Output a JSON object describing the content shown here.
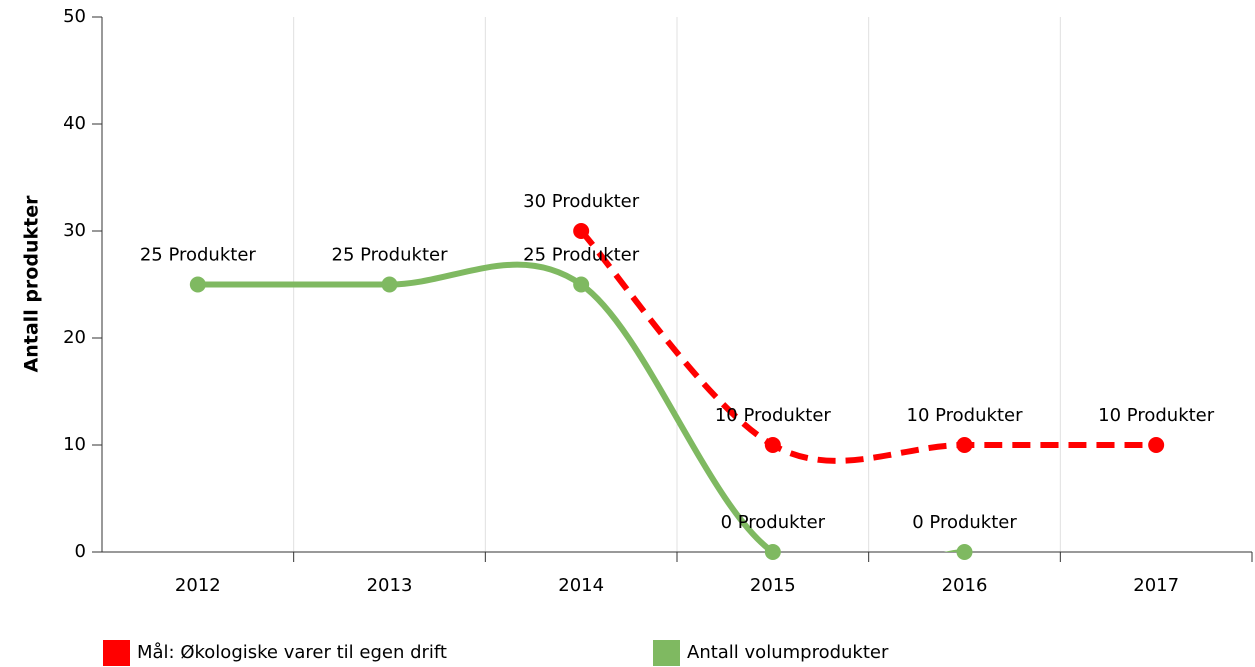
{
  "chart_data": {
    "type": "line",
    "y_label": "Antall produkter",
    "categories": [
      "2012",
      "2013",
      "2014",
      "2015",
      "2016",
      "2017"
    ],
    "series": [
      {
        "name": "Mål: Økologiske varer til egen drift",
        "color": "#ff0000",
        "dashed": true,
        "values": [
          null,
          null,
          30,
          10,
          10,
          10
        ],
        "value_labels": [
          null,
          null,
          "30 Produkter",
          "10 Produkter",
          "10 Produkter",
          "10 Produkter"
        ]
      },
      {
        "name": "Antall volumprodukter",
        "color": "#7fb961",
        "dashed": false,
        "values": [
          25,
          25,
          25,
          0,
          0,
          null
        ],
        "value_labels": [
          "25 Produkter",
          "25 Produkter",
          "25 Produkter",
          "0 Produkter",
          "0 Produkter",
          null
        ]
      }
    ],
    "ylim": [
      0,
      50
    ],
    "yticks": [
      0,
      10,
      20,
      30,
      40,
      50
    ],
    "smooth": true,
    "grid": "x",
    "legend": "bottom"
  }
}
